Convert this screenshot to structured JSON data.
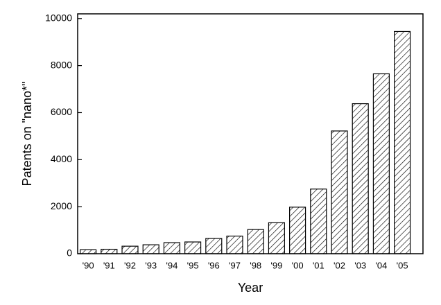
{
  "chart_data": {
    "type": "bar",
    "x_label": "Year",
    "y_label": "Patents on \"nano*\"",
    "categories": [
      "'90",
      "'91",
      "'92",
      "'93",
      "'94",
      "'95",
      "'96",
      "'97",
      "'98",
      "'99",
      "'00",
      "'01",
      "'02",
      "'03",
      "'04",
      "'05"
    ],
    "values": [
      170,
      190,
      320,
      380,
      470,
      500,
      650,
      750,
      1030,
      1320,
      1980,
      2750,
      5220,
      6380,
      7650,
      9450
    ],
    "color": "#000000",
    "ylim": [
      0,
      10200
    ],
    "yticks": [
      0,
      2000,
      4000,
      6000,
      8000,
      10000
    ],
    "grid": false
  }
}
